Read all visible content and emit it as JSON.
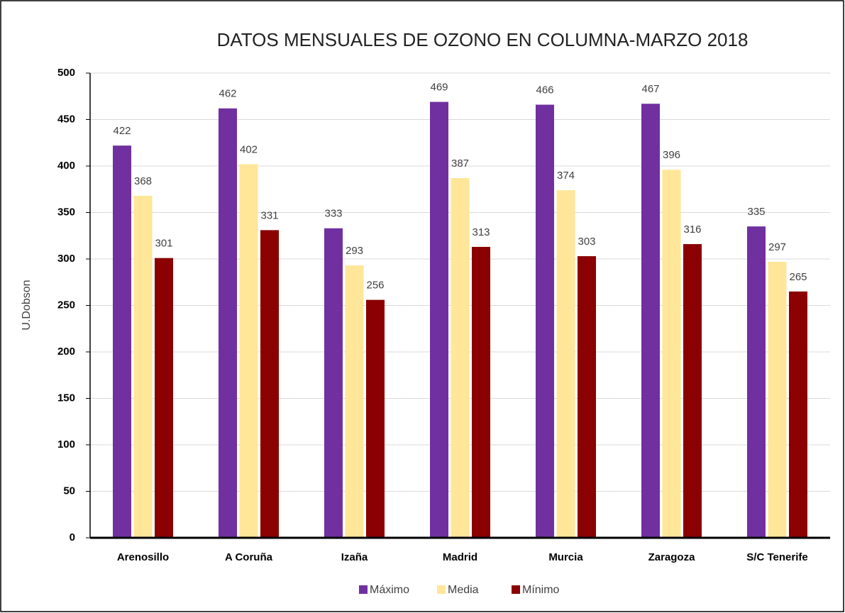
{
  "chart_data": {
    "type": "bar",
    "title": "DATOS MENSUALES DE OZONO EN COLUMNA-MARZO 2018",
    "y_label": "U.Dobson",
    "categories": [
      "Arenosillo",
      "A Coruña",
      "Izaña",
      "Madrid",
      "Murcia",
      "Zaragoza",
      "S/C Tenerife"
    ],
    "series": [
      {
        "name": "Máximo",
        "color": "#7030a0",
        "values": [
          422,
          462,
          333,
          469,
          466,
          467,
          335
        ]
      },
      {
        "name": "Media",
        "color": "#ffe699",
        "values": [
          368,
          402,
          293,
          387,
          374,
          396,
          297
        ]
      },
      {
        "name": "Mínimo",
        "color": "#8b0000",
        "values": [
          301,
          331,
          256,
          313,
          303,
          316,
          265
        ]
      }
    ],
    "ylim": [
      0,
      500
    ],
    "yticks": [
      0,
      50,
      100,
      150,
      200,
      250,
      300,
      350,
      400,
      450,
      500
    ],
    "grid": true,
    "legend": "bottom"
  }
}
